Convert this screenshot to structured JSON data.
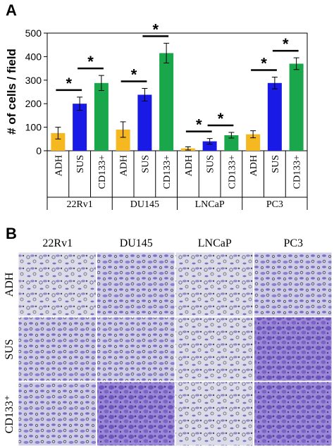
{
  "figure": {
    "panel_a_label": "A",
    "panel_b_label": "B"
  },
  "chart_data": {
    "type": "bar",
    "ylabel": "# of cells / field",
    "ylim": [
      0,
      500
    ],
    "yticks": [
      0,
      100,
      200,
      300,
      400,
      500
    ],
    "conditions": [
      "ADH",
      "SUS",
      "CD133+"
    ],
    "colors": {
      "ADH": "#f5b820",
      "SUS": "#1a1ae6",
      "CD133+": "#1aa64a"
    },
    "groups": [
      {
        "name": "22Rv1",
        "values": [
          75,
          200,
          288
        ],
        "errors": [
          25,
          28,
          32
        ]
      },
      {
        "name": "DU145",
        "values": [
          90,
          238,
          415
        ],
        "errors": [
          33,
          27,
          42
        ]
      },
      {
        "name": "LNCaP",
        "values": [
          10,
          40,
          66
        ],
        "errors": [
          7,
          12,
          12
        ]
      },
      {
        "name": "PC3",
        "values": [
          70,
          288,
          370
        ],
        "errors": [
          15,
          25,
          25
        ]
      }
    ],
    "significance_marker": "*",
    "grid": false
  },
  "micrographs": {
    "columns": [
      "22Rv1",
      "DU145",
      "LNCaP",
      "PC3"
    ],
    "rows": [
      "ADH",
      "SUS",
      "CD133⁺"
    ]
  }
}
